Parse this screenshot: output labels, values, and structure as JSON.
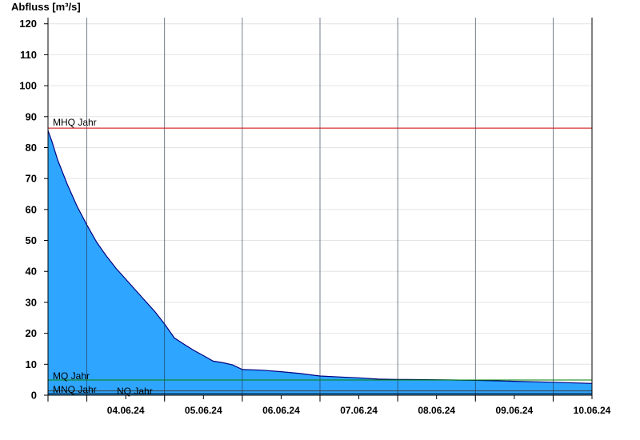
{
  "chart_data": {
    "type": "area",
    "ylabel": "Abfluss [m³/s]",
    "ylim": [
      0,
      122
    ],
    "yticks": [
      0,
      10,
      20,
      30,
      40,
      50,
      60,
      70,
      80,
      90,
      100,
      110,
      120
    ],
    "xlim": [
      "2024-06-03T12:00",
      "2024-06-10T12:00"
    ],
    "day_labels": [
      "04.06.24",
      "05.06.24",
      "06.06.24",
      "07.06.24",
      "08.06.24",
      "09.06.24",
      "10.06.24"
    ],
    "grid": true,
    "fill_color": "#2ea6ff",
    "line_color": "#000080",
    "series": [
      {
        "x": [
          "2024-06-03T12:00",
          "2024-06-03T13:12",
          "2024-06-03T15:00",
          "2024-06-03T18:00",
          "2024-06-03T21:00",
          "2024-06-04T00:00",
          "2024-06-04T03:00",
          "2024-06-04T06:00",
          "2024-06-04T09:00",
          "2024-06-04T12:00",
          "2024-06-04T15:00",
          "2024-06-04T18:00",
          "2024-06-04T21:00",
          "2024-06-05T00:00",
          "2024-06-05T03:00",
          "2024-06-05T06:00",
          "2024-06-05T09:00",
          "2024-06-05T12:00",
          "2024-06-05T15:00",
          "2024-06-05T18:00",
          "2024-06-05T21:00",
          "2024-06-06T00:00",
          "2024-06-06T06:00",
          "2024-06-06T12:00",
          "2024-06-06T18:00",
          "2024-06-06T21:00",
          "2024-06-07T00:00",
          "2024-06-07T06:00",
          "2024-06-07T12:00",
          "2024-06-07T18:00",
          "2024-06-08T00:00",
          "2024-06-08T12:00",
          "2024-06-09T00:00",
          "2024-06-09T12:00",
          "2024-06-10T00:00",
          "2024-06-10T12:00"
        ],
        "values": [
          85.5,
          82,
          76,
          68,
          61,
          55,
          49.5,
          45,
          41,
          37.5,
          34,
          30.5,
          27,
          23,
          18.5,
          16.5,
          14.5,
          12.8,
          11,
          10.5,
          9.8,
          8.3,
          8.1,
          7.6,
          7.0,
          6.6,
          6.2,
          5.9,
          5.6,
          5.2,
          5.1,
          5.0,
          4.8,
          4.5,
          4.2,
          3.8
        ]
      }
    ],
    "reference_lines": [
      {
        "label": "MHQ Jahr",
        "value": 86.3,
        "color": "#cc0000"
      },
      {
        "label": "MQ Jahr",
        "value": 4.9,
        "color": "#008000"
      },
      {
        "label": "MNQ Jahr",
        "value": 1.4,
        "color": "#3c3c3c"
      },
      {
        "label": "NQ Jahr",
        "value": 0.5,
        "color": "#000000"
      }
    ]
  }
}
